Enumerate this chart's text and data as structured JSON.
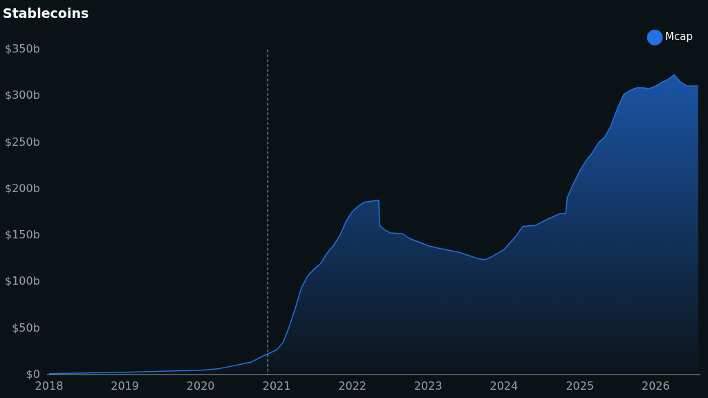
{
  "chart_data": {
    "type": "area",
    "title": "Stablecoins",
    "x": [
      "2018-01-01",
      "2019-01-01",
      "2019-06-01",
      "2020-01-01",
      "2020-04-01",
      "2020-07-01",
      "2020-09-01",
      "2020-11-01",
      "2021-01-01",
      "2021-02-01",
      "2021-03-01",
      "2021-04-01",
      "2021-05-01",
      "2021-06-01",
      "2021-07-01",
      "2021-08-01",
      "2021-09-01",
      "2021-10-01",
      "2021-11-01",
      "2021-12-01",
      "2022-01-01",
      "2022-02-01",
      "2022-03-01",
      "2022-04-01",
      "2022-05-08",
      "2022-05-12",
      "2022-06-01",
      "2022-07-01",
      "2022-09-01",
      "2022-10-01",
      "2022-12-01",
      "2023-01-01",
      "2023-03-01",
      "2023-06-01",
      "2023-09-01",
      "2023-10-01",
      "2023-11-01",
      "2024-01-01",
      "2024-03-01",
      "2024-04-01",
      "2024-06-01",
      "2024-08-01",
      "2024-10-01",
      "2024-10-25",
      "2024-11-01",
      "2024-12-01",
      "2025-01-01",
      "2025-02-01",
      "2025-03-01",
      "2025-04-01",
      "2025-05-01",
      "2025-06-01",
      "2025-07-01",
      "2025-08-01",
      "2025-09-01",
      "2025-10-01",
      "2025-11-01",
      "2025-12-01",
      "2026-01-01",
      "2026-02-01",
      "2026-03-01",
      "2026-04-01",
      "2026-05-01",
      "2026-06-01",
      "2026-07-25"
    ],
    "series": [
      {
        "name": "Mcap",
        "color": "#2172e5",
        "values": [
          1.5,
          3,
          4,
          5,
          7,
          11,
          14,
          21,
          27,
          35,
          51,
          72,
          94,
          107,
          114,
          120,
          131,
          139,
          150,
          165,
          176,
          182,
          186,
          187,
          188,
          161,
          157,
          153,
          152,
          147,
          142,
          139,
          136,
          132,
          125,
          124,
          127,
          135,
          150,
          160,
          161,
          168,
          174,
          174,
          191,
          206,
          220,
          231,
          239,
          250,
          256,
          269,
          287,
          302,
          306,
          309,
          309,
          308,
          311,
          315,
          318,
          323,
          315,
          311,
          311
        ]
      }
    ],
    "xlim": [
      "2017-12-25",
      "2026-08-01"
    ],
    "xticks": [
      {
        "value": "2018",
        "label": "2018"
      },
      {
        "value": "2019",
        "label": "2019"
      },
      {
        "value": "2020",
        "label": "2020"
      },
      {
        "value": "2021",
        "label": "2021"
      },
      {
        "value": "2022",
        "label": "2022"
      },
      {
        "value": "2023",
        "label": "2023"
      },
      {
        "value": "2024",
        "label": "2024"
      },
      {
        "value": "2025",
        "label": "2025"
      },
      {
        "value": "2026",
        "label": "2026"
      }
    ],
    "ylim": [
      0,
      350
    ],
    "yticks": [
      {
        "value": 0,
        "label": "$0"
      },
      {
        "value": 50,
        "label": "$50b"
      },
      {
        "value": 100,
        "label": "$100b"
      },
      {
        "value": 150,
        "label": "$150b"
      },
      {
        "value": 200,
        "label": "$200b"
      },
      {
        "value": 250,
        "label": "$250b"
      },
      {
        "value": 300,
        "label": "$300b"
      },
      {
        "value": 350,
        "label": "$350b"
      }
    ],
    "ref_lines": [
      {
        "axis": "x",
        "value": "2020-11-20",
        "color": "#cccccc",
        "line_style": "dashed"
      }
    ],
    "legend": "top right",
    "grid": false,
    "marker": "none",
    "line_style": "solid"
  }
}
